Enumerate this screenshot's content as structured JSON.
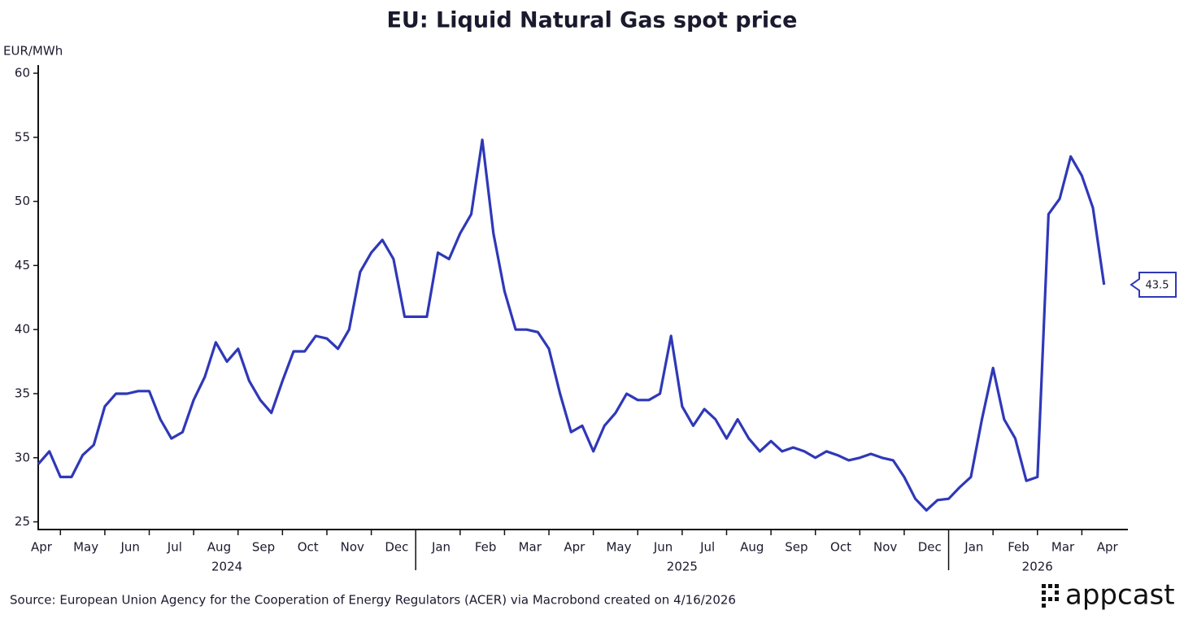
{
  "chart_data": {
    "type": "line",
    "title": "EU: Liquid Natural Gas spot price",
    "y_axis_label": "EUR/MWh",
    "source": "Source: European Union Agency for the Cooperation of Energy Regulators (ACER) via Macrobond created on 4/16/2026",
    "logo": "appcast",
    "categories": [
      "Apr",
      null,
      null,
      null,
      "May",
      null,
      null,
      null,
      "Jun",
      null,
      null,
      null,
      "Jul",
      null,
      null,
      null,
      "Aug",
      null,
      null,
      null,
      "Sep",
      null,
      null,
      null,
      "Oct",
      null,
      null,
      null,
      "Nov",
      null,
      null,
      null,
      "Dec",
      null,
      null,
      null,
      "Jan",
      null,
      null,
      null,
      "Feb",
      null,
      null,
      null,
      "Mar",
      null,
      null,
      null,
      "Apr",
      null,
      null,
      null,
      "May",
      null,
      null,
      null,
      "Jun",
      null,
      null,
      null,
      "Jul",
      null,
      null,
      null,
      "Aug",
      null,
      null,
      null,
      "Sep",
      null,
      null,
      null,
      "Oct",
      null,
      null,
      null,
      "Nov",
      null,
      null,
      null,
      "Dec",
      null,
      null,
      null,
      "Jan",
      null,
      null,
      null,
      "Feb",
      null,
      null,
      null,
      "Mar",
      null,
      null,
      null,
      "Apr",
      null,
      null
    ],
    "year_labels": [
      "2024",
      "2025",
      "2026"
    ],
    "series": [
      {
        "name": "EU LNG spot price",
        "color": "#2f38b8",
        "values": [
          29.5,
          30.5,
          28.5,
          28.5,
          30.2,
          31,
          34,
          35,
          35,
          35.2,
          35.2,
          33,
          31.5,
          32,
          34.5,
          36.3,
          39,
          37.5,
          38.5,
          36,
          34.5,
          33.5,
          36,
          38.3,
          38.3,
          39.5,
          39.3,
          38.5,
          40,
          44.5,
          46,
          47,
          45.5,
          41,
          41,
          41,
          46,
          45.5,
          47.5,
          49,
          54.8,
          47.5,
          43,
          40,
          40,
          39.8,
          38.5,
          35,
          32,
          32.5,
          30.5,
          32.5,
          33.5,
          35,
          34.5,
          34.5,
          35,
          39.5,
          34,
          32.5,
          33.8,
          33,
          31.5,
          33,
          31.5,
          30.5,
          31.3,
          30.5,
          30.8,
          30.5,
          30,
          30.5,
          30.2,
          29.8,
          30,
          30.3,
          30,
          29.8,
          28.5,
          26.8,
          25.9,
          26.7,
          26.8,
          27.7,
          28.5,
          33,
          37,
          33,
          31.5,
          28.2,
          28.5,
          49,
          50.2,
          53.5,
          52,
          49.5,
          43.5,
          null,
          null
        ]
      }
    ],
    "ylim": [
      24.4,
      60
    ],
    "yticks": [
      25,
      30,
      35,
      40,
      45,
      50,
      55,
      60
    ],
    "grid": false
  }
}
